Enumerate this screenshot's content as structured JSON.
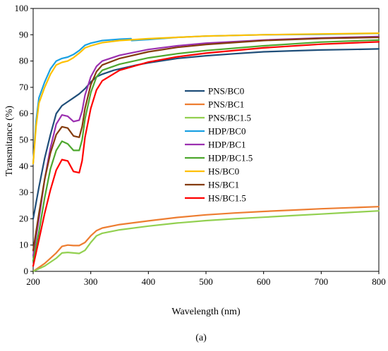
{
  "chart_data": {
    "type": "line",
    "xlabel": "Wavelength (nm)",
    "ylabel": "Transmitance (%)",
    "caption": "(a)",
    "xlim": [
      200,
      800
    ],
    "ylim": [
      0,
      100
    ],
    "xticks": [
      200,
      300,
      400,
      500,
      600,
      700,
      800
    ],
    "yticks": [
      0,
      10,
      20,
      30,
      40,
      50,
      60,
      70,
      80,
      90,
      100
    ],
    "grid": false,
    "legend_position": "center-right",
    "series": [
      {
        "name": "PNS/BC0",
        "color": "#1f4e79",
        "points": [
          [
            200,
            20
          ],
          [
            210,
            32
          ],
          [
            220,
            43
          ],
          [
            230,
            52
          ],
          [
            240,
            60
          ],
          [
            250,
            63
          ],
          [
            260,
            64.5
          ],
          [
            270,
            66
          ],
          [
            280,
            67.5
          ],
          [
            290,
            69.5
          ],
          [
            300,
            72
          ],
          [
            310,
            74
          ],
          [
            320,
            75
          ],
          [
            340,
            76.5
          ],
          [
            360,
            77.5
          ],
          [
            380,
            78.5
          ],
          [
            400,
            79.3
          ],
          [
            450,
            81
          ],
          [
            500,
            82
          ],
          [
            550,
            82.8
          ],
          [
            600,
            83.5
          ],
          [
            650,
            83.9
          ],
          [
            700,
            84.2
          ],
          [
            750,
            84.4
          ],
          [
            800,
            84.6
          ]
        ]
      },
      {
        "name": "PNS/BC1",
        "color": "#ed7d31",
        "points": [
          [
            200,
            0
          ],
          [
            220,
            3
          ],
          [
            240,
            7
          ],
          [
            250,
            9.5
          ],
          [
            260,
            10
          ],
          [
            270,
            9.8
          ],
          [
            280,
            9.8
          ],
          [
            290,
            11
          ],
          [
            300,
            13.5
          ],
          [
            310,
            15.5
          ],
          [
            320,
            16.5
          ],
          [
            350,
            17.8
          ],
          [
            400,
            19.2
          ],
          [
            450,
            20.5
          ],
          [
            500,
            21.5
          ],
          [
            550,
            22.2
          ],
          [
            600,
            22.8
          ],
          [
            650,
            23.3
          ],
          [
            700,
            23.8
          ],
          [
            750,
            24.2
          ],
          [
            800,
            24.6
          ]
        ]
      },
      {
        "name": "PNS/BC1.5",
        "color": "#92d050",
        "points": [
          [
            200,
            0
          ],
          [
            220,
            2
          ],
          [
            240,
            5
          ],
          [
            250,
            7
          ],
          [
            260,
            7.2
          ],
          [
            270,
            7
          ],
          [
            280,
            6.8
          ],
          [
            290,
            8
          ],
          [
            300,
            11
          ],
          [
            310,
            13.5
          ],
          [
            320,
            14.5
          ],
          [
            350,
            15.8
          ],
          [
            400,
            17.2
          ],
          [
            450,
            18.4
          ],
          [
            500,
            19.3
          ],
          [
            550,
            20
          ],
          [
            600,
            20.6
          ],
          [
            650,
            21.2
          ],
          [
            700,
            21.8
          ],
          [
            750,
            22.4
          ],
          [
            800,
            23
          ]
        ]
      },
      {
        "name": "HDP/BC0",
        "color": "#1ba1e2",
        "points": [
          [
            200,
            41
          ],
          [
            205,
            57
          ],
          [
            210,
            66
          ],
          [
            220,
            72
          ],
          [
            230,
            77
          ],
          [
            240,
            80
          ],
          [
            250,
            81
          ],
          [
            260,
            81.5
          ],
          [
            270,
            82.5
          ],
          [
            280,
            84
          ],
          [
            290,
            86
          ],
          [
            300,
            86.8
          ],
          [
            320,
            87.8
          ],
          [
            350,
            88.3
          ],
          [
            370,
            88.5
          ],
          [
            371,
            87.8
          ],
          [
            400,
            88.2
          ],
          [
            450,
            89
          ],
          [
            500,
            89.5
          ],
          [
            600,
            90
          ],
          [
            700,
            90.2
          ],
          [
            800,
            90.5
          ]
        ]
      },
      {
        "name": "HDP/BC1",
        "color": "#9b30b0",
        "points": [
          [
            200,
            6
          ],
          [
            210,
            20
          ],
          [
            220,
            35
          ],
          [
            230,
            47
          ],
          [
            240,
            56
          ],
          [
            250,
            59.5
          ],
          [
            260,
            59
          ],
          [
            270,
            57
          ],
          [
            280,
            57.5
          ],
          [
            285,
            61
          ],
          [
            290,
            67
          ],
          [
            300,
            74
          ],
          [
            310,
            78
          ],
          [
            320,
            80
          ],
          [
            350,
            82.2
          ],
          [
            400,
            84.4
          ],
          [
            450,
            85.8
          ],
          [
            500,
            86.8
          ],
          [
            600,
            88
          ],
          [
            700,
            88.8
          ],
          [
            800,
            89.3
          ]
        ]
      },
      {
        "name": "HDP/BC1.5",
        "color": "#4ea72e",
        "points": [
          [
            200,
            4
          ],
          [
            210,
            15
          ],
          [
            220,
            28
          ],
          [
            230,
            39
          ],
          [
            240,
            46
          ],
          [
            250,
            49.5
          ],
          [
            260,
            48.5
          ],
          [
            270,
            46
          ],
          [
            280,
            46
          ],
          [
            285,
            50
          ],
          [
            290,
            58
          ],
          [
            300,
            68
          ],
          [
            310,
            74
          ],
          [
            320,
            76.5
          ],
          [
            350,
            78.8
          ],
          [
            400,
            81.2
          ],
          [
            450,
            82.8
          ],
          [
            500,
            84
          ],
          [
            600,
            85.8
          ],
          [
            700,
            87.2
          ],
          [
            800,
            88
          ]
        ]
      },
      {
        "name": "HS/BC0",
        "color": "#ffc000",
        "points": [
          [
            200,
            41
          ],
          [
            205,
            55
          ],
          [
            210,
            64
          ],
          [
            220,
            70
          ],
          [
            230,
            75
          ],
          [
            240,
            78.5
          ],
          [
            250,
            79.5
          ],
          [
            260,
            80
          ],
          [
            270,
            81.3
          ],
          [
            280,
            83
          ],
          [
            290,
            85
          ],
          [
            300,
            85.8
          ],
          [
            320,
            87
          ],
          [
            350,
            87.8
          ],
          [
            400,
            88.5
          ],
          [
            450,
            89
          ],
          [
            500,
            89.5
          ],
          [
            600,
            90
          ],
          [
            700,
            90.3
          ],
          [
            800,
            90.6
          ]
        ]
      },
      {
        "name": "HS/BC1",
        "color": "#843c0c",
        "points": [
          [
            200,
            8
          ],
          [
            210,
            22
          ],
          [
            220,
            35
          ],
          [
            230,
            45
          ],
          [
            240,
            52
          ],
          [
            250,
            55
          ],
          [
            260,
            54.5
          ],
          [
            270,
            51.5
          ],
          [
            280,
            51
          ],
          [
            285,
            55
          ],
          [
            290,
            62
          ],
          [
            300,
            71
          ],
          [
            310,
            76
          ],
          [
            320,
            78.5
          ],
          [
            350,
            81
          ],
          [
            400,
            83.5
          ],
          [
            450,
            85.2
          ],
          [
            500,
            86.3
          ],
          [
            600,
            87.8
          ],
          [
            700,
            88.6
          ],
          [
            800,
            89
          ]
        ]
      },
      {
        "name": "HS/BC1.5",
        "color": "#ff0000",
        "points": [
          [
            200,
            2
          ],
          [
            210,
            12
          ],
          [
            220,
            22
          ],
          [
            230,
            31
          ],
          [
            240,
            38.5
          ],
          [
            250,
            42.5
          ],
          [
            260,
            42
          ],
          [
            270,
            38
          ],
          [
            280,
            37.5
          ],
          [
            285,
            42
          ],
          [
            290,
            51
          ],
          [
            300,
            62
          ],
          [
            310,
            69
          ],
          [
            320,
            72.5
          ],
          [
            350,
            76.5
          ],
          [
            400,
            79.6
          ],
          [
            450,
            81.6
          ],
          [
            500,
            83
          ],
          [
            600,
            85
          ],
          [
            700,
            86.4
          ],
          [
            800,
            87.3
          ]
        ]
      }
    ]
  }
}
